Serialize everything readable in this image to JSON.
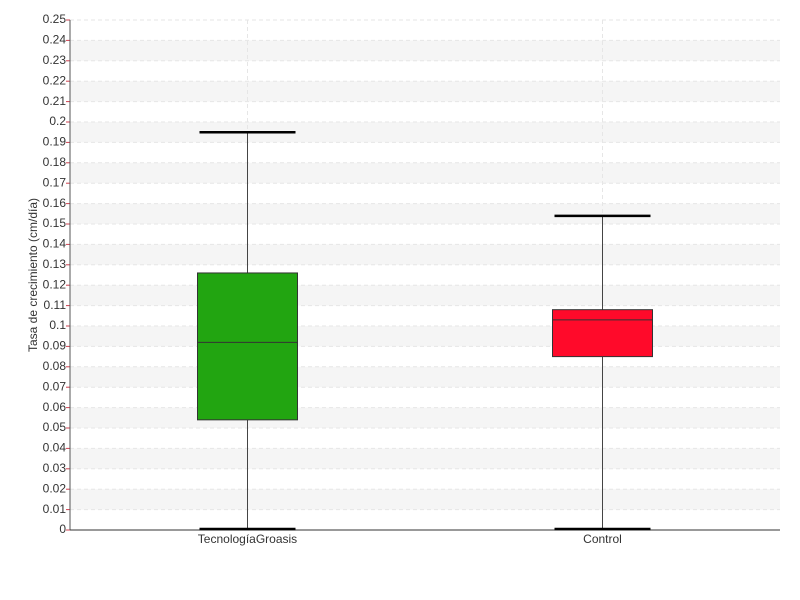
{
  "chart_data": {
    "type": "box",
    "ylabel": "Tasa de crecimiento (cm/día)",
    "categories": [
      "TecnologíaGroasis",
      "Control"
    ],
    "boxes": [
      {
        "min": 0,
        "q1": 0.054,
        "median": 0.092,
        "q3": 0.126,
        "max": 0.195,
        "color": "#22a511"
      },
      {
        "min": 0,
        "q1": 0.085,
        "median": 0.103,
        "q3": 0.108,
        "max": 0.154,
        "color": "#ff0a2a"
      }
    ],
    "ylim": [
      0,
      0.25
    ],
    "yticks": [
      0,
      0.01,
      0.02,
      0.03,
      0.04,
      0.05,
      0.06,
      0.07,
      0.08,
      0.09,
      0.1,
      0.11,
      0.12,
      0.13,
      0.14,
      0.15,
      0.16,
      0.17,
      0.18,
      0.19,
      0.2,
      0.21,
      0.22,
      0.23,
      0.24,
      0.25
    ],
    "grid": true
  }
}
